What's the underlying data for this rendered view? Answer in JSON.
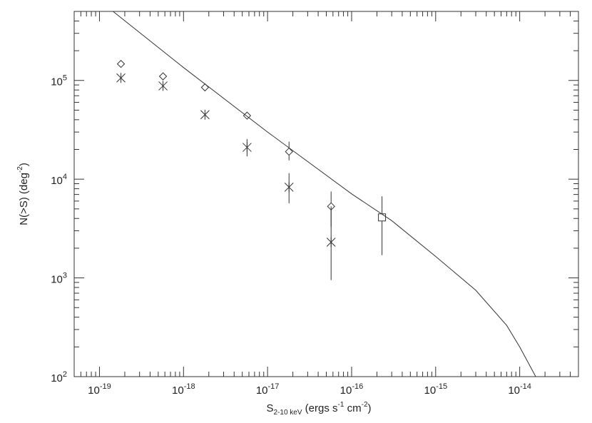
{
  "chart_data": {
    "type": "scatter",
    "xlabel": {
      "main": "S",
      "sub": "2-10 keV",
      "rest": " (ergs s",
      "sup1": "-1",
      "mid": " cm",
      "sup2": "-2",
      "end": ")"
    },
    "ylabel": {
      "main": "N(>S) (deg",
      "sup": "-2",
      "end": ")"
    },
    "x_scale": "log",
    "y_scale": "log",
    "xlim": [
      5e-20,
      5e-14
    ],
    "ylim": [
      100,
      500000
    ],
    "x_ticks": [
      {
        "value": 1e-19,
        "base": "10",
        "exp": "-19"
      },
      {
        "value": 1e-18,
        "base": "10",
        "exp": "-18"
      },
      {
        "value": 1e-17,
        "base": "10",
        "exp": "-17"
      },
      {
        "value": 1e-16,
        "base": "10",
        "exp": "-16"
      },
      {
        "value": 1e-15,
        "base": "10",
        "exp": "-15"
      },
      {
        "value": 1e-14,
        "base": "10",
        "exp": "-14"
      }
    ],
    "y_ticks": [
      {
        "value": 100,
        "base": "10",
        "exp": "2"
      },
      {
        "value": 1000,
        "base": "10",
        "exp": "3"
      },
      {
        "value": 10000,
        "base": "10",
        "exp": "4"
      },
      {
        "value": 100000,
        "base": "10",
        "exp": "5"
      }
    ],
    "grid": false,
    "legend": "none",
    "series": [
      {
        "marker": "diamond",
        "points": [
          {
            "x": 1.8e-19,
            "y": 147000
          },
          {
            "x": 5.7e-19,
            "y": 110000
          },
          {
            "x": 1.8e-18,
            "y": 85000
          },
          {
            "x": 5.7e-18,
            "y": 44000
          },
          {
            "x": 1.8e-17,
            "y": 19000,
            "yerr": [
              15500,
              24000
            ]
          },
          {
            "x": 5.7e-17,
            "y": 5300,
            "yerr": [
              3300,
              7500
            ]
          }
        ]
      },
      {
        "marker": "asterisk",
        "points": [
          {
            "x": 1.8e-19,
            "y": 106000
          },
          {
            "x": 5.7e-19,
            "y": 88000
          },
          {
            "x": 1.8e-18,
            "y": 45000
          },
          {
            "x": 5.7e-18,
            "y": 21000,
            "yerr": [
              17000,
              25500
            ]
          },
          {
            "x": 1.8e-17,
            "y": 8300,
            "yerr": [
              5700,
              11500
            ]
          },
          {
            "x": 5.7e-17,
            "y": 2300,
            "yerr": [
              950,
              5300
            ]
          }
        ]
      },
      {
        "marker": "square",
        "points": [
          {
            "x": 2.3e-16,
            "y": 4100,
            "yerr": [
              1700,
              6700
            ]
          }
        ]
      },
      {
        "type": "line",
        "points": [
          {
            "x": 1.45e-19,
            "y": 500000
          },
          {
            "x": 1e-18,
            "y": 135000
          },
          {
            "x": 1e-17,
            "y": 30000
          },
          {
            "x": 1e-16,
            "y": 7100
          },
          {
            "x": 3e-16,
            "y": 3800
          },
          {
            "x": 1e-15,
            "y": 1650
          },
          {
            "x": 3e-15,
            "y": 750
          },
          {
            "x": 7e-15,
            "y": 330
          },
          {
            "x": 1e-14,
            "y": 200
          },
          {
            "x": 1.55e-14,
            "y": 100
          }
        ]
      }
    ]
  }
}
